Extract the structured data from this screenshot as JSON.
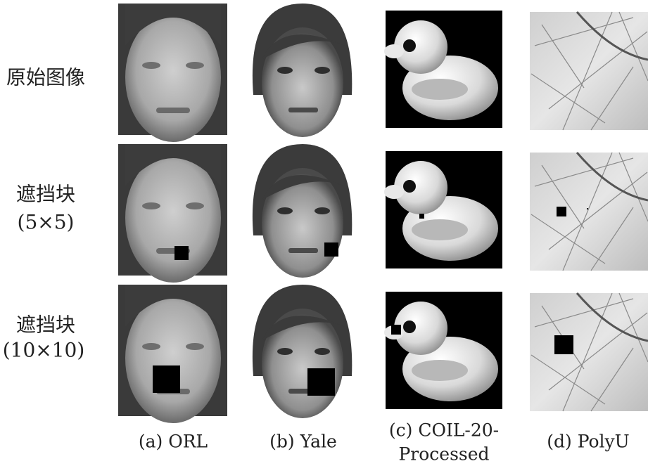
{
  "rows": [
    {
      "label": "原始图像"
    },
    {
      "label": "遮挡块",
      "size": "(5×5)"
    },
    {
      "label": "遮挡块",
      "size": "(10×10)"
    }
  ],
  "columns": [
    {
      "caption": [
        "(a) ORL"
      ]
    },
    {
      "caption": [
        "(b) Yale"
      ]
    },
    {
      "caption": [
        "(c) COIL-20-",
        "Processed"
      ]
    },
    {
      "caption": [
        "(d) PolyU"
      ]
    }
  ]
}
